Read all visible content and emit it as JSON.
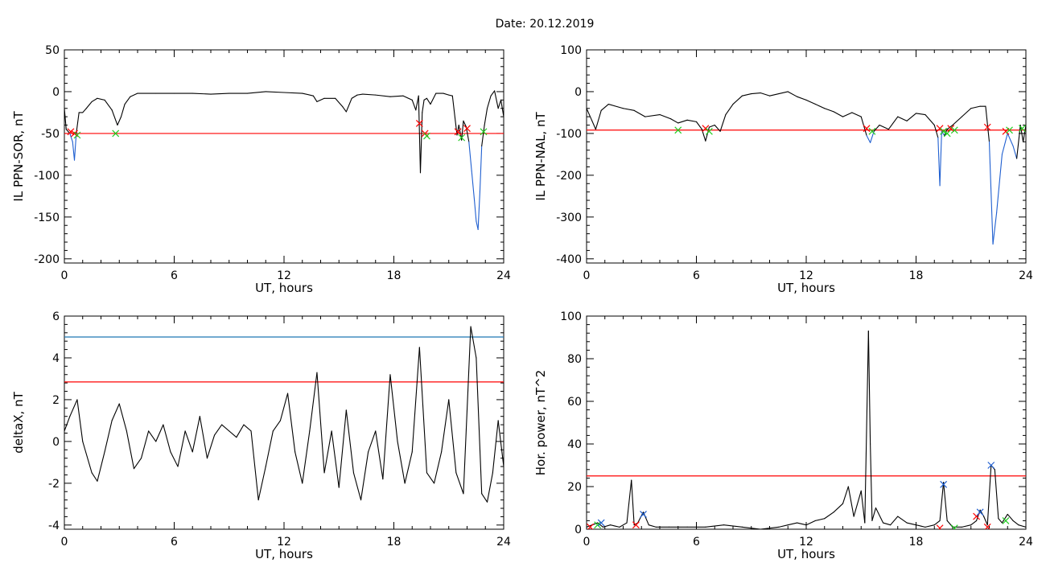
{
  "title": "Date:  20.12.2019",
  "colors": {
    "curve": "#000000",
    "threshold": "#ff0000",
    "upper_threshold": "#1f78b4",
    "event_segment": "#1f5fd0",
    "marker_red": "#ff0000",
    "marker_green": "#22cc22",
    "marker_blue": "#1f5fd0"
  },
  "chart_data": [
    {
      "id": "sor",
      "type": "line",
      "xlabel": "UT, hours",
      "ylabel": "IL PPN-SOR, nT",
      "xlim": [
        0,
        24
      ],
      "ylim": [
        -205,
        50
      ],
      "xticks": [
        0,
        6,
        12,
        18,
        24
      ],
      "yticks": [
        50,
        0,
        -50,
        -100,
        -150,
        -200
      ],
      "threshold": -50,
      "x": [
        0,
        0.1,
        0.3,
        0.45,
        0.55,
        0.65,
        0.8,
        1,
        1.2,
        1.5,
        1.8,
        2.2,
        2.6,
        2.9,
        3.1,
        3.3,
        3.6,
        4,
        5,
        6,
        7,
        8,
        9,
        10,
        11,
        12,
        13,
        13.6,
        13.8,
        14.2,
        14.8,
        15.2,
        15.4,
        15.7,
        16,
        16.3,
        17,
        17.8,
        18.5,
        19,
        19.2,
        19.35,
        19.45,
        19.55,
        19.65,
        19.8,
        20,
        20.3,
        20.7,
        21,
        21.2,
        21.45,
        21.55,
        21.7,
        21.8,
        21.95,
        22.1,
        22.25,
        22.4,
        22.5,
        22.6,
        22.7,
        22.8,
        22.95,
        23.1,
        23.3,
        23.5,
        23.7,
        23.85,
        24
      ],
      "y": [
        -20,
        -45,
        -50,
        -60,
        -82,
        -50,
        -25,
        -25,
        -20,
        -12,
        -8,
        -10,
        -22,
        -40,
        -30,
        -15,
        -6,
        -2,
        -2,
        -2,
        -2,
        -3,
        -2,
        -2,
        0,
        -1,
        -2,
        -5,
        -12,
        -8,
        -8,
        -18,
        -24,
        -8,
        -4,
        -3,
        -4,
        -6,
        -5,
        -10,
        -22,
        -5,
        -97,
        -25,
        -10,
        -8,
        -15,
        -2,
        -2,
        -4,
        -5,
        -52,
        -40,
        -58,
        -35,
        -42,
        -60,
        -95,
        -130,
        -155,
        -165,
        -120,
        -65,
        -40,
        -20,
        -5,
        1,
        -20,
        -10,
        -30
      ],
      "markers": [
        {
          "x": 0.35,
          "y": -48,
          "color": "red"
        },
        {
          "x": 0.55,
          "y": -50,
          "color": "red"
        },
        {
          "x": 0.7,
          "y": -52,
          "color": "green"
        },
        {
          "x": 2.8,
          "y": -50,
          "color": "green"
        },
        {
          "x": 19.4,
          "y": -38,
          "color": "red"
        },
        {
          "x": 19.7,
          "y": -50,
          "color": "red"
        },
        {
          "x": 19.8,
          "y": -53,
          "color": "green"
        },
        {
          "x": 21.5,
          "y": -48,
          "color": "red"
        },
        {
          "x": 21.7,
          "y": -55,
          "color": "green"
        },
        {
          "x": 22.0,
          "y": -44,
          "color": "red"
        },
        {
          "x": 22.9,
          "y": -48,
          "color": "green"
        }
      ]
    },
    {
      "id": "nal",
      "type": "line",
      "xlabel": "UT, hours",
      "ylabel": "IL PPN-NAL, nT",
      "xlim": [
        0,
        24
      ],
      "ylim": [
        -410,
        100
      ],
      "xticks": [
        0,
        6,
        12,
        18,
        24
      ],
      "yticks": [
        100,
        0,
        -100,
        -200,
        -300,
        -400
      ],
      "threshold": -92,
      "x": [
        0,
        0.3,
        0.5,
        0.8,
        1.2,
        2,
        2.6,
        3.2,
        4,
        4.6,
        5,
        5.5,
        6,
        6.3,
        6.5,
        6.7,
        7,
        7.3,
        7.6,
        8,
        8.5,
        9,
        9.5,
        10,
        11,
        11.5,
        12,
        12.5,
        13,
        13.5,
        14,
        14.5,
        15,
        15.3,
        15.5,
        15.7,
        16,
        16.5,
        17,
        17.5,
        18,
        18.5,
        19,
        19.2,
        19.3,
        19.4,
        19.55,
        19.7,
        20,
        20.5,
        21,
        21.5,
        21.8,
        22,
        22.2,
        22.4,
        22.7,
        23,
        23.3,
        23.5,
        23.7,
        23.85,
        24
      ],
      "y": [
        -40,
        -70,
        -90,
        -45,
        -30,
        -40,
        -45,
        -60,
        -55,
        -65,
        -75,
        -68,
        -72,
        -90,
        -118,
        -85,
        -80,
        -95,
        -55,
        -30,
        -10,
        -5,
        -3,
        -10,
        0,
        -12,
        -20,
        -30,
        -40,
        -48,
        -60,
        -50,
        -60,
        -105,
        -122,
        -95,
        -80,
        -90,
        -60,
        -70,
        -52,
        -55,
        -80,
        -110,
        -225,
        -95,
        -105,
        -90,
        -80,
        -60,
        -40,
        -35,
        -35,
        -120,
        -365,
        -290,
        -150,
        -100,
        -130,
        -160,
        -80,
        -120,
        -80
      ],
      "markers": [
        {
          "x": 5.0,
          "y": -92,
          "color": "green"
        },
        {
          "x": 6.5,
          "y": -88,
          "color": "red"
        },
        {
          "x": 6.7,
          "y": -95,
          "color": "green"
        },
        {
          "x": 15.3,
          "y": -88,
          "color": "red"
        },
        {
          "x": 15.6,
          "y": -95,
          "color": "green"
        },
        {
          "x": 19.3,
          "y": -88,
          "color": "red"
        },
        {
          "x": 19.5,
          "y": -95,
          "color": "green"
        },
        {
          "x": 19.7,
          "y": -100,
          "color": "green"
        },
        {
          "x": 19.9,
          "y": -88,
          "color": "red"
        },
        {
          "x": 20.1,
          "y": -92,
          "color": "green"
        },
        {
          "x": 21.9,
          "y": -85,
          "color": "red"
        },
        {
          "x": 22.9,
          "y": -95,
          "color": "red"
        },
        {
          "x": 23.1,
          "y": -92,
          "color": "green"
        },
        {
          "x": 23.8,
          "y": -88,
          "color": "green"
        }
      ]
    },
    {
      "id": "deltax",
      "type": "line",
      "xlabel": "UT, hours",
      "ylabel": "deltaX, nT",
      "xlim": [
        0,
        24
      ],
      "ylim": [
        -4.2,
        6
      ],
      "xticks": [
        0,
        6,
        12,
        18,
        24
      ],
      "yticks": [
        6,
        4,
        2,
        0,
        -2,
        -4
      ],
      "threshold": 2.85,
      "upper_threshold": 5.0,
      "x": [
        0,
        0.3,
        0.7,
        1,
        1.5,
        1.8,
        2.2,
        2.6,
        3,
        3.4,
        3.8,
        4.2,
        4.6,
        5,
        5.4,
        5.8,
        6.2,
        6.6,
        7,
        7.4,
        7.8,
        8.2,
        8.6,
        9,
        9.4,
        9.8,
        10.2,
        10.6,
        11,
        11.4,
        11.8,
        12.2,
        12.6,
        13,
        13.4,
        13.8,
        14.2,
        14.6,
        15,
        15.4,
        15.8,
        16.2,
        16.6,
        17,
        17.4,
        17.8,
        18.2,
        18.6,
        19,
        19.4,
        19.8,
        20.2,
        20.6,
        21,
        21.4,
        21.8,
        22.2,
        22.5,
        22.8,
        23.1,
        23.4,
        23.7,
        24
      ],
      "y": [
        0.5,
        1.2,
        2.0,
        0,
        -1.5,
        -1.9,
        -0.5,
        1.0,
        1.8,
        0.5,
        -1.3,
        -0.8,
        0.5,
        0,
        0.8,
        -0.5,
        -1.2,
        0.5,
        -0.5,
        1.2,
        -0.8,
        0.3,
        0.8,
        0.5,
        0.2,
        0.8,
        0.5,
        -2.8,
        -1.2,
        0.5,
        1.0,
        2.3,
        -0.5,
        -2.0,
        0.5,
        3.3,
        -1.5,
        0.5,
        -2.2,
        1.5,
        -1.5,
        -2.8,
        -0.5,
        0.5,
        -1.8,
        3.2,
        0,
        -2.0,
        -0.5,
        4.5,
        -1.5,
        -2.0,
        -0.5,
        2.0,
        -1.5,
        -2.5,
        5.5,
        4.0,
        -2.5,
        -2.9,
        -1.5,
        1.0,
        -1.2
      ]
    },
    {
      "id": "hpower",
      "type": "line",
      "xlabel": "UT, hours",
      "ylabel": "Hor. power, nT^2",
      "xlim": [
        0,
        24
      ],
      "ylim": [
        0,
        100
      ],
      "xticks": [
        0,
        6,
        12,
        18,
        24
      ],
      "yticks": [
        100,
        80,
        60,
        40,
        20,
        0
      ],
      "threshold": 25,
      "x": [
        0,
        0.3,
        0.6,
        0.9,
        1.3,
        1.8,
        2.2,
        2.45,
        2.6,
        2.8,
        3.1,
        3.4,
        3.8,
        4.5,
        5.5,
        6.5,
        7.5,
        8.5,
        9.5,
        10.5,
        11,
        11.5,
        12,
        12.5,
        13,
        13.5,
        14,
        14.3,
        14.6,
        15,
        15.2,
        15.4,
        15.5,
        15.6,
        15.8,
        16.2,
        16.6,
        17,
        17.5,
        18,
        18.5,
        19,
        19.3,
        19.5,
        19.7,
        20,
        20.5,
        21,
        21.3,
        21.5,
        21.7,
        21.9,
        22.1,
        22.3,
        22.5,
        22.7,
        23,
        23.3,
        23.6,
        24
      ],
      "y": [
        1,
        2,
        3,
        1,
        2,
        1,
        3,
        23,
        2,
        3,
        8,
        2,
        1,
        1,
        1,
        1,
        2,
        1,
        0,
        1,
        2,
        3,
        2,
        4,
        5,
        8,
        12,
        20,
        6,
        18,
        3,
        93,
        40,
        4,
        10,
        3,
        2,
        6,
        3,
        2,
        1,
        2,
        4,
        22,
        4,
        1,
        1,
        2,
        4,
        9,
        6,
        2,
        30,
        28,
        5,
        3,
        7,
        4,
        2,
        1
      ],
      "markers": [
        {
          "x": 0.2,
          "y": 1,
          "color": "red"
        },
        {
          "x": 0.6,
          "y": 2,
          "color": "green"
        },
        {
          "x": 0.8,
          "y": 3,
          "color": "blue"
        },
        {
          "x": 2.7,
          "y": 2,
          "color": "red"
        },
        {
          "x": 3.1,
          "y": 7,
          "color": "blue"
        },
        {
          "x": 19.3,
          "y": 0.5,
          "color": "red"
        },
        {
          "x": 19.5,
          "y": 21,
          "color": "blue"
        },
        {
          "x": 20.1,
          "y": 0.5,
          "color": "green"
        },
        {
          "x": 21.3,
          "y": 6,
          "color": "red"
        },
        {
          "x": 21.5,
          "y": 8,
          "color": "blue"
        },
        {
          "x": 21.9,
          "y": 1,
          "color": "red"
        },
        {
          "x": 22.1,
          "y": 30,
          "color": "blue"
        },
        {
          "x": 22.9,
          "y": 4,
          "color": "green"
        }
      ]
    }
  ]
}
